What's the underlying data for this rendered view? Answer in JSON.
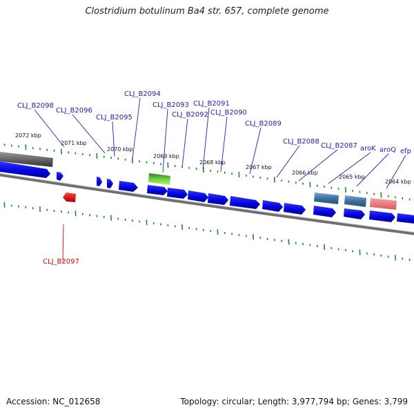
{
  "title": "Clostridium botulinum Ba4 str. 657, complete genome",
  "footer": {
    "accession": "Accession: NC_012658",
    "summary": "Topology: circular; Length: 3,977,794 bp; Genes: 3,799"
  },
  "colors": {
    "forward_gene": "#0000ee",
    "reverse_gene": "#ee0000",
    "rna": "#55cc22",
    "highlight_blue": "#4a7fb5",
    "highlight_pink": "#ee7777",
    "label_blue": "#1a1acc",
    "label_red": "#dd0000",
    "tick": "#228822",
    "backbone": "#777777"
  },
  "kbp_labels": [
    "2072 kbp",
    "2071 kbp",
    "2070 kbp",
    "2069 kbp",
    "2068 kbp",
    "2067 kbp",
    "2066 kbp",
    "2065 kbp",
    "2064 kbp"
  ],
  "gene_labels": [
    {
      "text": "CLJ_B2098",
      "color": "blue"
    },
    {
      "text": "CLJ_B2096",
      "color": "blue"
    },
    {
      "text": "CLJ_B2095",
      "color": "blue"
    },
    {
      "text": "CLJ_B2094",
      "color": "blue"
    },
    {
      "text": "CLJ_B2093",
      "color": "blue"
    },
    {
      "text": "CLJ_B2092",
      "color": "blue"
    },
    {
      "text": "CLJ_B2091",
      "color": "blue"
    },
    {
      "text": "CLJ_B2090",
      "color": "blue"
    },
    {
      "text": "CLJ_B2089",
      "color": "blue"
    },
    {
      "text": "CLJ_B2088",
      "color": "blue"
    },
    {
      "text": "CLJ_B2087",
      "color": "blue"
    },
    {
      "text": "aroK",
      "color": "blue"
    },
    {
      "text": "aroQ",
      "color": "blue"
    },
    {
      "text": "efp",
      "color": "blue"
    },
    {
      "text": "CLJ_B2097",
      "color": "red"
    }
  ]
}
